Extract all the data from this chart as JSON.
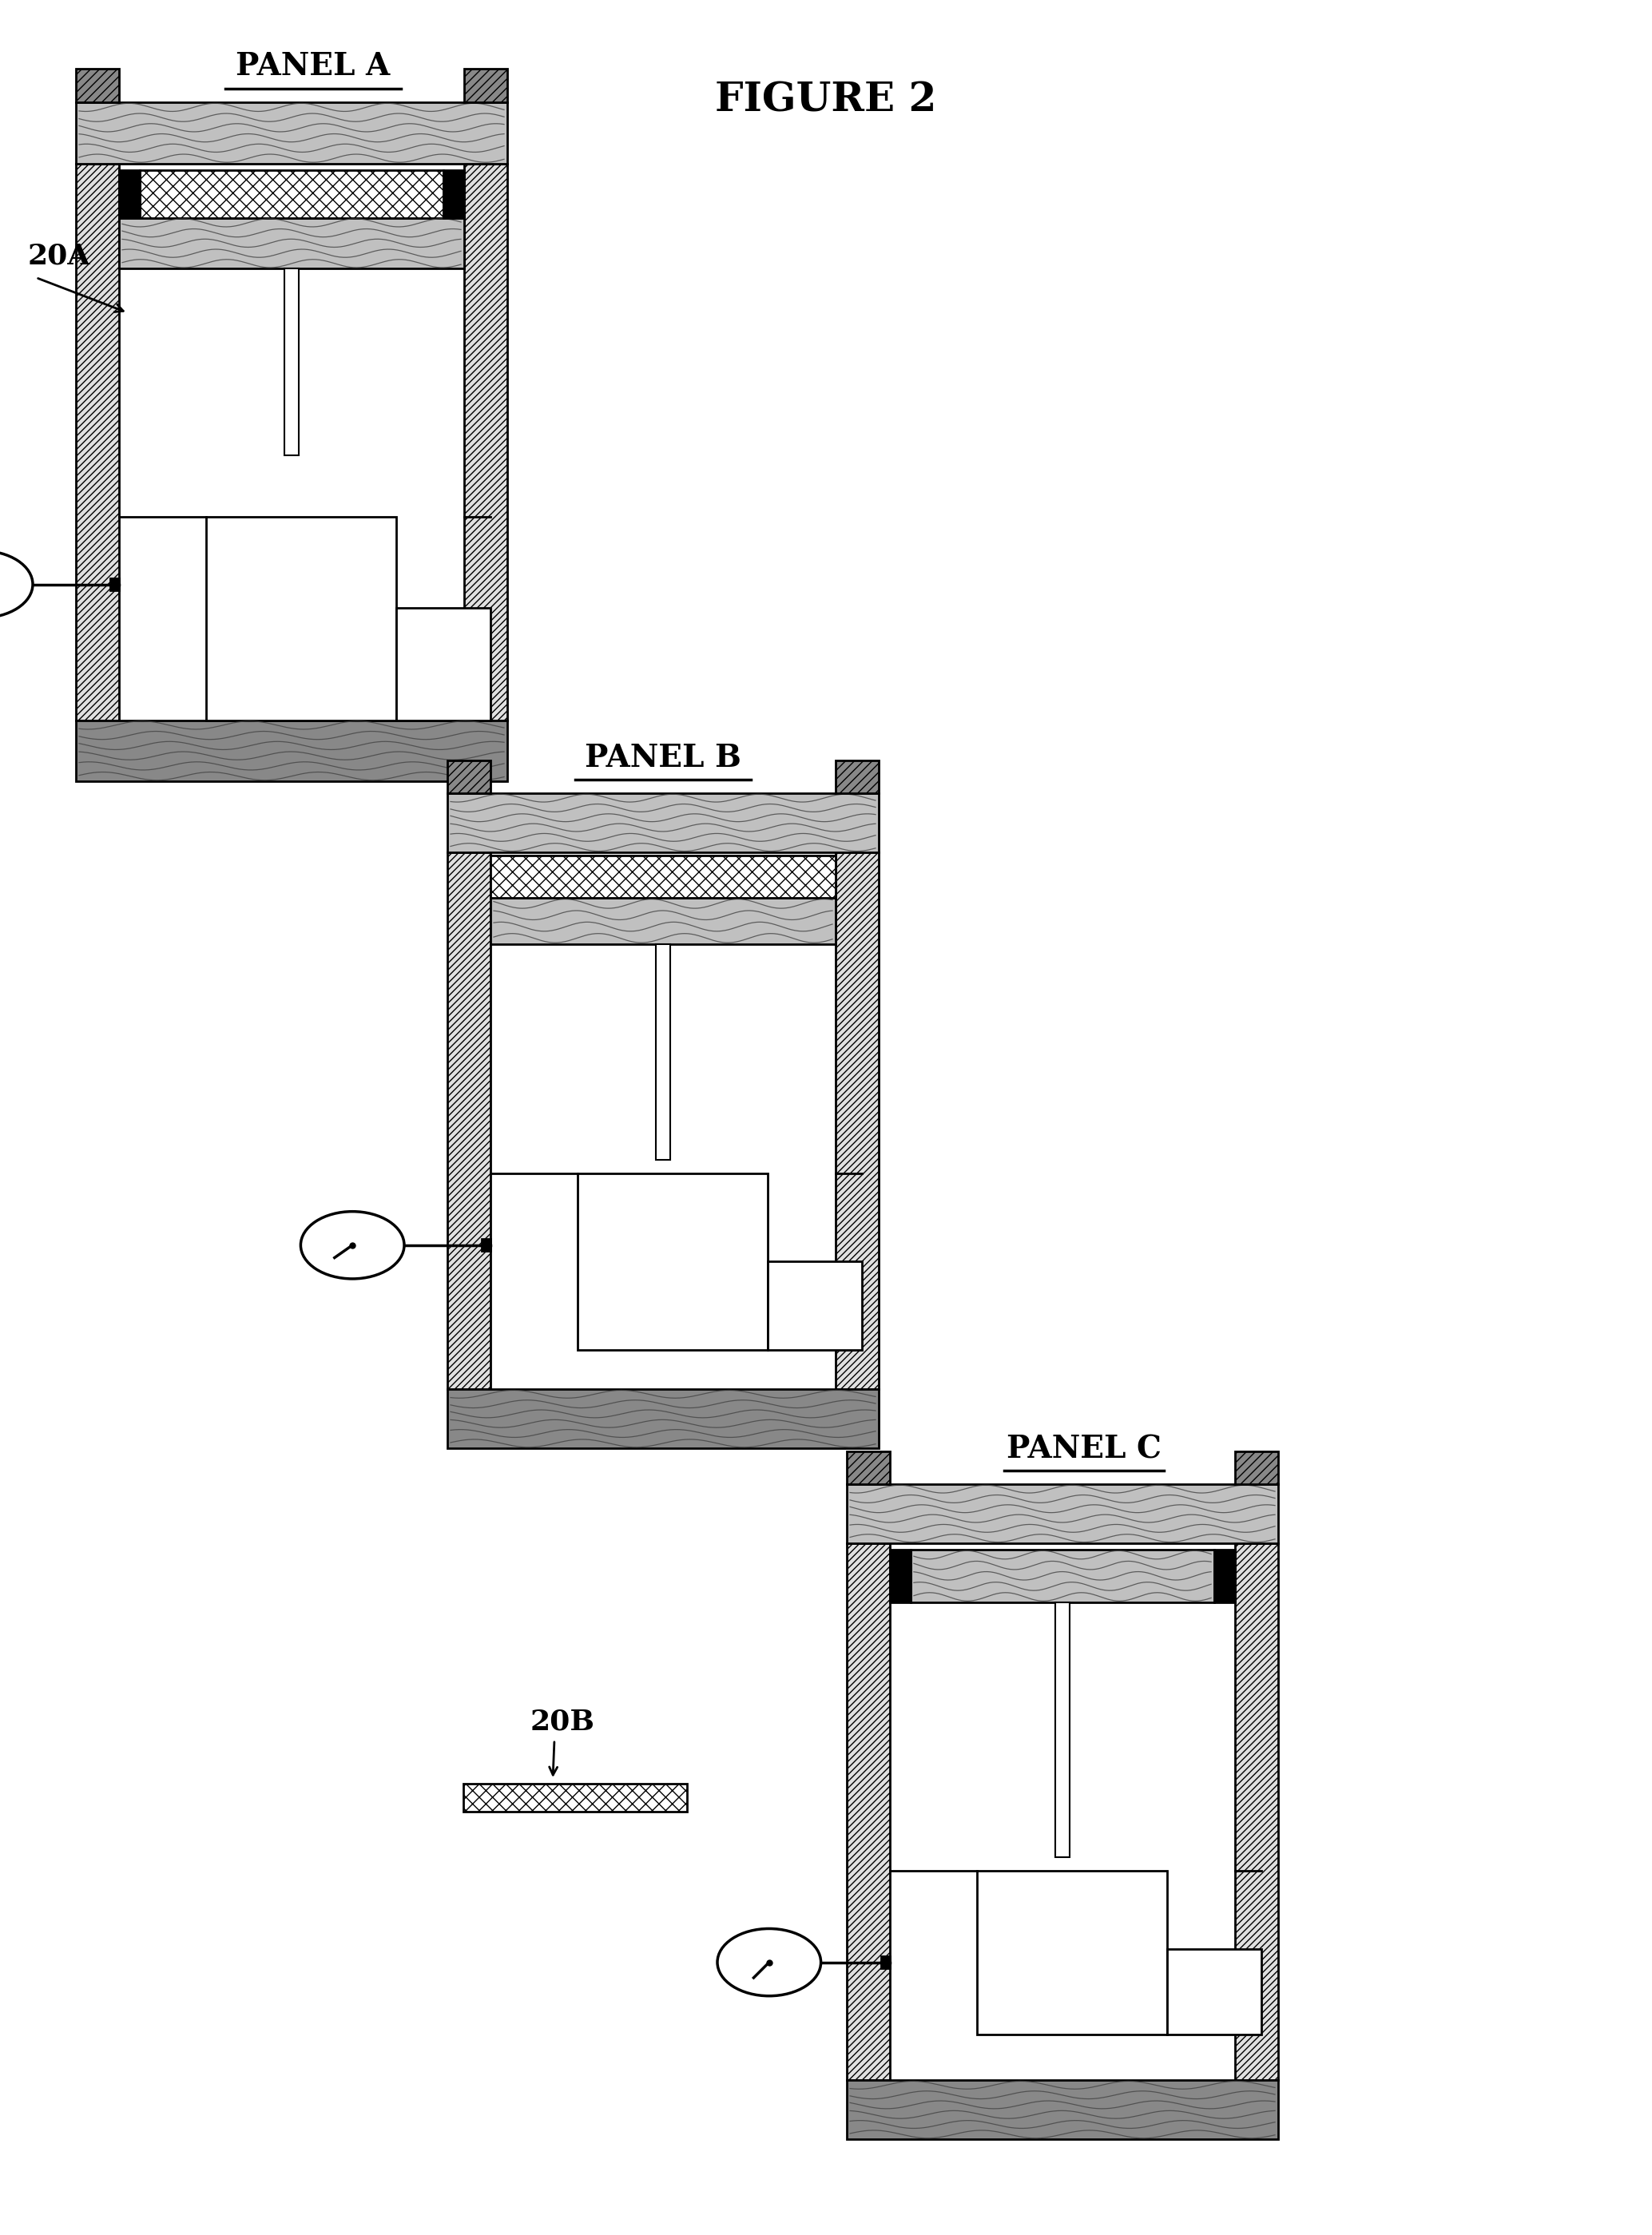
{
  "title": "FIGURE 2",
  "bg_color": "#ffffff",
  "panel_a_label": "PANEL A",
  "panel_b_label": "PANEL B",
  "panel_c_label": "PANEL C",
  "label_20a": "20A",
  "label_20b": "20B"
}
